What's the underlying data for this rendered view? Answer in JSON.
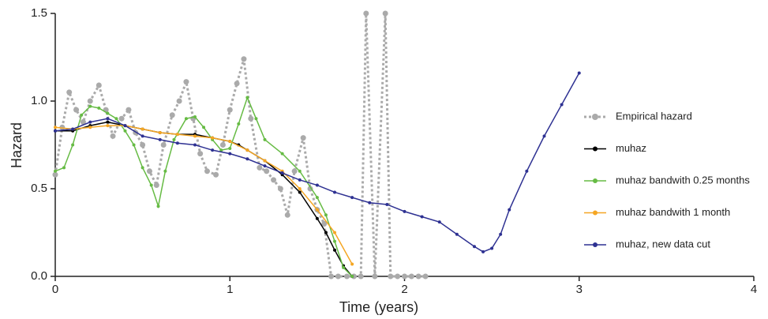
{
  "chart_data": {
    "type": "line",
    "xlabel": "Time (years)",
    "ylabel": "Hazard",
    "xlim": [
      0,
      4
    ],
    "xticks": [
      0,
      1,
      2,
      3,
      4
    ],
    "ylim": [
      0,
      1.5
    ],
    "yticks": [
      {
        "value": 0,
        "label": "0.0"
      },
      {
        "value": 0.5,
        "label": "0.5"
      },
      {
        "value": 1,
        "label": "1.0"
      },
      {
        "value": 1.5,
        "label": "1.5"
      }
    ],
    "legend": "right",
    "series": [
      {
        "name": "Empirical hazard",
        "color": "#aaaaaa",
        "dashed": true,
        "x": [
          0,
          0.04,
          0.08,
          0.12,
          0.16,
          0.2,
          0.25,
          0.29,
          0.33,
          0.38,
          0.42,
          0.46,
          0.5,
          0.54,
          0.58,
          0.62,
          0.67,
          0.71,
          0.75,
          0.79,
          0.83,
          0.87,
          0.92,
          0.96,
          1.0,
          1.04,
          1.08,
          1.12,
          1.17,
          1.21,
          1.25,
          1.29,
          1.33,
          1.37,
          1.42,
          1.46,
          1.5,
          1.54,
          1.58,
          1.62,
          1.67,
          1.71,
          1.75,
          1.78,
          1.83,
          1.89,
          1.92,
          1.96,
          2.0,
          2.04,
          2.08,
          2.12
        ],
        "values": [
          0.58,
          0.85,
          1.05,
          0.95,
          0.88,
          1.0,
          1.09,
          0.95,
          0.8,
          0.9,
          0.95,
          0.82,
          0.75,
          0.6,
          0.52,
          0.75,
          0.92,
          1.0,
          1.11,
          0.9,
          0.7,
          0.6,
          0.58,
          0.75,
          0.95,
          1.1,
          1.24,
          0.9,
          0.62,
          0.6,
          0.55,
          0.5,
          0.35,
          0.6,
          0.79,
          0.5,
          0.38,
          0.3,
          0,
          0,
          0,
          0,
          0,
          1.5,
          0,
          1.5,
          0,
          0,
          0,
          0,
          0,
          0
        ]
      },
      {
        "name": "muhaz",
        "color": "#000000",
        "x": [
          0,
          0.1,
          0.2,
          0.3,
          0.4,
          0.5,
          0.6,
          0.7,
          0.8,
          0.9,
          1.0,
          1.05,
          1.1,
          1.2,
          1.3,
          1.4,
          1.5,
          1.55,
          1.6,
          1.65,
          1.7
        ],
        "values": [
          0.83,
          0.83,
          0.86,
          0.88,
          0.86,
          0.84,
          0.82,
          0.81,
          0.81,
          0.79,
          0.77,
          0.75,
          0.72,
          0.66,
          0.58,
          0.48,
          0.33,
          0.25,
          0.15,
          0.06,
          0.0
        ]
      },
      {
        "name": "muhaz bandwith 0.25 months",
        "color": "#66bb44",
        "x": [
          0,
          0.05,
          0.1,
          0.15,
          0.2,
          0.25,
          0.3,
          0.35,
          0.4,
          0.45,
          0.5,
          0.55,
          0.59,
          0.63,
          0.68,
          0.75,
          0.8,
          0.85,
          0.9,
          0.95,
          1.0,
          1.05,
          1.1,
          1.15,
          1.2,
          1.3,
          1.4,
          1.5,
          1.55,
          1.6,
          1.65,
          1.7
        ],
        "values": [
          0.6,
          0.62,
          0.75,
          0.92,
          0.97,
          0.96,
          0.93,
          0.9,
          0.83,
          0.75,
          0.62,
          0.52,
          0.4,
          0.6,
          0.78,
          0.9,
          0.91,
          0.85,
          0.78,
          0.72,
          0.73,
          0.87,
          1.02,
          0.9,
          0.78,
          0.7,
          0.6,
          0.45,
          0.35,
          0.2,
          0.05,
          0.0
        ]
      },
      {
        "name": "muhaz bandwith 1 month",
        "color": "#f5a623",
        "x": [
          0,
          0.1,
          0.2,
          0.3,
          0.4,
          0.5,
          0.6,
          0.7,
          0.8,
          0.9,
          1.0,
          1.1,
          1.2,
          1.3,
          1.4,
          1.5,
          1.6,
          1.7
        ],
        "values": [
          0.85,
          0.84,
          0.85,
          0.86,
          0.86,
          0.84,
          0.82,
          0.81,
          0.8,
          0.79,
          0.77,
          0.72,
          0.66,
          0.6,
          0.5,
          0.38,
          0.25,
          0.07
        ]
      },
      {
        "name": "muhaz, new data cut",
        "color": "#2e3192",
        "x": [
          0,
          0.1,
          0.2,
          0.3,
          0.4,
          0.5,
          0.6,
          0.7,
          0.8,
          0.9,
          1.0,
          1.1,
          1.2,
          1.3,
          1.4,
          1.5,
          1.6,
          1.7,
          1.8,
          1.9,
          2.0,
          2.1,
          2.2,
          2.3,
          2.4,
          2.45,
          2.5,
          2.55,
          2.6,
          2.7,
          2.8,
          2.9,
          3.0
        ],
        "values": [
          0.83,
          0.84,
          0.88,
          0.9,
          0.86,
          0.8,
          0.78,
          0.76,
          0.75,
          0.72,
          0.7,
          0.67,
          0.63,
          0.59,
          0.55,
          0.52,
          0.48,
          0.45,
          0.42,
          0.41,
          0.37,
          0.34,
          0.31,
          0.24,
          0.17,
          0.14,
          0.16,
          0.24,
          0.38,
          0.6,
          0.8,
          0.98,
          1.16
        ]
      }
    ]
  }
}
